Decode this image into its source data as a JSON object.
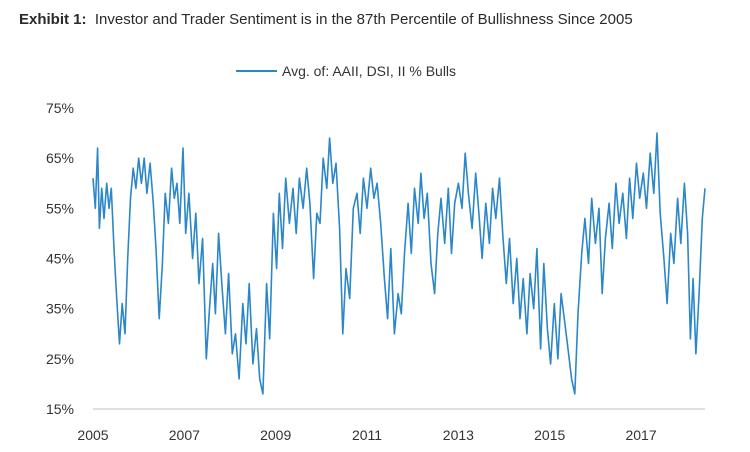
{
  "header": {
    "exhibit_label": "Exhibit 1:",
    "title_text": "Investor and Trader Sentiment is in the 87th Percentile of Bullishness Since 2005"
  },
  "chart_data": {
    "type": "line",
    "title": "Exhibit 1: Investor and Trader Sentiment is in the 87th Percentile of Bullishness Since 2005",
    "xlabel": "",
    "ylabel": "",
    "x_ticks": [
      "2005",
      "2007",
      "2009",
      "2011",
      "2013",
      "2015",
      "2017"
    ],
    "x_tick_values": [
      2005,
      2007,
      2009,
      2011,
      2013,
      2015,
      2017
    ],
    "y_ticks": [
      "15%",
      "25%",
      "35%",
      "45%",
      "55%",
      "65%",
      "75%"
    ],
    "y_tick_values": [
      15,
      25,
      35,
      45,
      55,
      65,
      75
    ],
    "xlim": [
      2005,
      2018.4
    ],
    "ylim": [
      15,
      75
    ],
    "grid": false,
    "legend_position": "top-center",
    "series": [
      {
        "name": "Avg. of: AAII, DSI, II % Bulls",
        "color": "#2b87c8",
        "points": [
          [
            2005.0,
            61
          ],
          [
            2005.05,
            55
          ],
          [
            2005.1,
            67
          ],
          [
            2005.14,
            51
          ],
          [
            2005.19,
            59
          ],
          [
            2005.24,
            53
          ],
          [
            2005.3,
            60
          ],
          [
            2005.35,
            55
          ],
          [
            2005.4,
            59
          ],
          [
            2005.46,
            47
          ],
          [
            2005.52,
            37
          ],
          [
            2005.58,
            28
          ],
          [
            2005.64,
            36
          ],
          [
            2005.7,
            30
          ],
          [
            2005.76,
            45
          ],
          [
            2005.82,
            57
          ],
          [
            2005.88,
            63
          ],
          [
            2005.94,
            59
          ],
          [
            2006.0,
            65
          ],
          [
            2006.06,
            60
          ],
          [
            2006.12,
            65
          ],
          [
            2006.18,
            58
          ],
          [
            2006.25,
            64
          ],
          [
            2006.32,
            56
          ],
          [
            2006.38,
            47
          ],
          [
            2006.45,
            33
          ],
          [
            2006.52,
            44
          ],
          [
            2006.58,
            58
          ],
          [
            2006.65,
            52
          ],
          [
            2006.72,
            63
          ],
          [
            2006.78,
            57
          ],
          [
            2006.84,
            60
          ],
          [
            2006.9,
            52
          ],
          [
            2006.97,
            67
          ],
          [
            2007.03,
            50
          ],
          [
            2007.1,
            58
          ],
          [
            2007.18,
            45
          ],
          [
            2007.25,
            54
          ],
          [
            2007.32,
            40
          ],
          [
            2007.4,
            49
          ],
          [
            2007.48,
            25
          ],
          [
            2007.55,
            35
          ],
          [
            2007.62,
            44
          ],
          [
            2007.68,
            34
          ],
          [
            2007.75,
            50
          ],
          [
            2007.82,
            40
          ],
          [
            2007.9,
            30
          ],
          [
            2007.97,
            42
          ],
          [
            2008.05,
            26
          ],
          [
            2008.12,
            30
          ],
          [
            2008.2,
            21
          ],
          [
            2008.28,
            36
          ],
          [
            2008.35,
            28
          ],
          [
            2008.42,
            40
          ],
          [
            2008.5,
            24
          ],
          [
            2008.58,
            31
          ],
          [
            2008.65,
            21
          ],
          [
            2008.72,
            18
          ],
          [
            2008.8,
            40
          ],
          [
            2008.87,
            29
          ],
          [
            2008.95,
            54
          ],
          [
            2009.02,
            43
          ],
          [
            2009.08,
            58
          ],
          [
            2009.15,
            47
          ],
          [
            2009.22,
            61
          ],
          [
            2009.3,
            52
          ],
          [
            2009.38,
            59
          ],
          [
            2009.45,
            50
          ],
          [
            2009.52,
            61
          ],
          [
            2009.6,
            55
          ],
          [
            2009.68,
            63
          ],
          [
            2009.75,
            56
          ],
          [
            2009.83,
            41
          ],
          [
            2009.9,
            54
          ],
          [
            2009.97,
            52
          ],
          [
            2010.04,
            65
          ],
          [
            2010.12,
            59
          ],
          [
            2010.18,
            69
          ],
          [
            2010.25,
            60
          ],
          [
            2010.32,
            64
          ],
          [
            2010.4,
            51
          ],
          [
            2010.47,
            30
          ],
          [
            2010.54,
            43
          ],
          [
            2010.62,
            37
          ],
          [
            2010.7,
            55
          ],
          [
            2010.78,
            58
          ],
          [
            2010.85,
            50
          ],
          [
            2010.92,
            61
          ],
          [
            2011.0,
            55
          ],
          [
            2011.08,
            63
          ],
          [
            2011.15,
            57
          ],
          [
            2011.22,
            60
          ],
          [
            2011.3,
            52
          ],
          [
            2011.38,
            41
          ],
          [
            2011.45,
            33
          ],
          [
            2011.52,
            47
          ],
          [
            2011.6,
            30
          ],
          [
            2011.68,
            38
          ],
          [
            2011.75,
            34
          ],
          [
            2011.82,
            46
          ],
          [
            2011.9,
            56
          ],
          [
            2011.97,
            46
          ],
          [
            2012.04,
            59
          ],
          [
            2012.12,
            52
          ],
          [
            2012.18,
            62
          ],
          [
            2012.25,
            53
          ],
          [
            2012.32,
            58
          ],
          [
            2012.4,
            44
          ],
          [
            2012.48,
            38
          ],
          [
            2012.55,
            50
          ],
          [
            2012.62,
            57
          ],
          [
            2012.7,
            48
          ],
          [
            2012.78,
            59
          ],
          [
            2012.85,
            46
          ],
          [
            2012.92,
            56
          ],
          [
            2013.0,
            60
          ],
          [
            2013.08,
            55
          ],
          [
            2013.15,
            66
          ],
          [
            2013.22,
            58
          ],
          [
            2013.3,
            51
          ],
          [
            2013.38,
            62
          ],
          [
            2013.45,
            54
          ],
          [
            2013.52,
            45
          ],
          [
            2013.6,
            56
          ],
          [
            2013.68,
            48
          ],
          [
            2013.75,
            59
          ],
          [
            2013.82,
            53
          ],
          [
            2013.9,
            61
          ],
          [
            2013.97,
            50
          ],
          [
            2014.05,
            40
          ],
          [
            2014.12,
            49
          ],
          [
            2014.2,
            36
          ],
          [
            2014.28,
            45
          ],
          [
            2014.35,
            33
          ],
          [
            2014.42,
            41
          ],
          [
            2014.5,
            30
          ],
          [
            2014.57,
            42
          ],
          [
            2014.65,
            35
          ],
          [
            2014.72,
            47
          ],
          [
            2014.8,
            27
          ],
          [
            2014.87,
            44
          ],
          [
            2014.95,
            31
          ],
          [
            2015.02,
            24
          ],
          [
            2015.1,
            36
          ],
          [
            2015.18,
            25
          ],
          [
            2015.25,
            38
          ],
          [
            2015.32,
            33
          ],
          [
            2015.4,
            27
          ],
          [
            2015.48,
            21
          ],
          [
            2015.55,
            18
          ],
          [
            2015.62,
            34
          ],
          [
            2015.7,
            46
          ],
          [
            2015.77,
            53
          ],
          [
            2015.85,
            44
          ],
          [
            2015.92,
            57
          ],
          [
            2016.0,
            48
          ],
          [
            2016.08,
            55
          ],
          [
            2016.15,
            38
          ],
          [
            2016.22,
            49
          ],
          [
            2016.3,
            56
          ],
          [
            2016.37,
            47
          ],
          [
            2016.45,
            60
          ],
          [
            2016.52,
            52
          ],
          [
            2016.6,
            58
          ],
          [
            2016.68,
            49
          ],
          [
            2016.75,
            61
          ],
          [
            2016.82,
            53
          ],
          [
            2016.9,
            64
          ],
          [
            2016.97,
            57
          ],
          [
            2017.05,
            62
          ],
          [
            2017.12,
            55
          ],
          [
            2017.2,
            66
          ],
          [
            2017.28,
            58
          ],
          [
            2017.35,
            70
          ],
          [
            2017.42,
            54
          ],
          [
            2017.5,
            45
          ],
          [
            2017.57,
            36
          ],
          [
            2017.65,
            50
          ],
          [
            2017.72,
            44
          ],
          [
            2017.8,
            57
          ],
          [
            2017.87,
            48
          ],
          [
            2017.95,
            60
          ],
          [
            2018.02,
            50
          ],
          [
            2018.08,
            29
          ],
          [
            2018.14,
            41
          ],
          [
            2018.2,
            26
          ],
          [
            2018.27,
            38
          ],
          [
            2018.34,
            53
          ],
          [
            2018.4,
            59
          ]
        ]
      }
    ]
  }
}
